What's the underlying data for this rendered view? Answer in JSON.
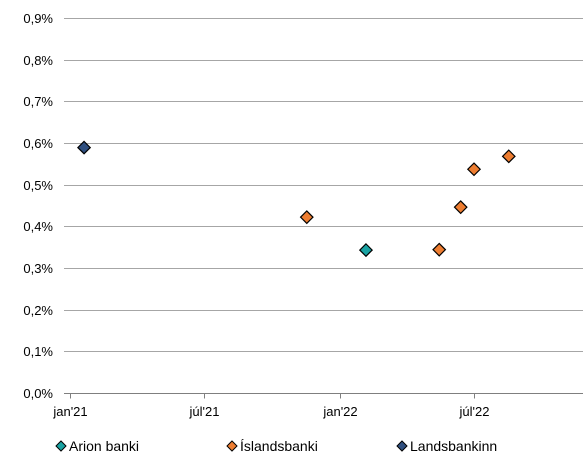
{
  "chart_data": {
    "type": "scatter",
    "title": "",
    "xlabel": "",
    "ylabel": "",
    "x_axis": {
      "type": "date",
      "range": [
        "2021-01-01",
        "2022-12-31"
      ],
      "ticks": [
        {
          "date": "2021-01-01",
          "label": "jan'21"
        },
        {
          "date": "2021-07-01",
          "label": "júl'21"
        },
        {
          "date": "2022-01-01",
          "label": "jan'22"
        },
        {
          "date": "2022-07-01",
          "label": "júl'22"
        }
      ]
    },
    "y_axis": {
      "range": [
        0,
        0.9
      ],
      "ticks": [
        {
          "value": 0.0,
          "label": "0,0%"
        },
        {
          "value": 0.1,
          "label": "0,1%"
        },
        {
          "value": 0.2,
          "label": "0,2%"
        },
        {
          "value": 0.3,
          "label": "0,3%"
        },
        {
          "value": 0.4,
          "label": "0,4%"
        },
        {
          "value": 0.5,
          "label": "0,5%"
        },
        {
          "value": 0.6,
          "label": "0,6%"
        },
        {
          "value": 0.7,
          "label": "0,7%"
        },
        {
          "value": 0.8,
          "label": "0,8%"
        },
        {
          "value": 0.9,
          "label": "0,9%"
        }
      ]
    },
    "grid": true,
    "legend_position": "bottom",
    "series": [
      {
        "name": "Arion banki",
        "color": "#1aa3a3",
        "points": [
          {
            "x": "2022-02-05",
            "y": 0.343
          }
        ]
      },
      {
        "name": "Íslandsbanki",
        "color": "#ed7d31",
        "points": [
          {
            "x": "2021-11-17",
            "y": 0.422
          },
          {
            "x": "2022-05-15",
            "y": 0.344
          },
          {
            "x": "2022-06-13",
            "y": 0.446
          },
          {
            "x": "2022-07-01",
            "y": 0.537
          },
          {
            "x": "2022-08-17",
            "y": 0.568
          }
        ]
      },
      {
        "name": "Landsbankinn",
        "color": "#2f4f7f",
        "points": [
          {
            "x": "2021-01-20",
            "y": 0.589
          }
        ]
      }
    ]
  }
}
